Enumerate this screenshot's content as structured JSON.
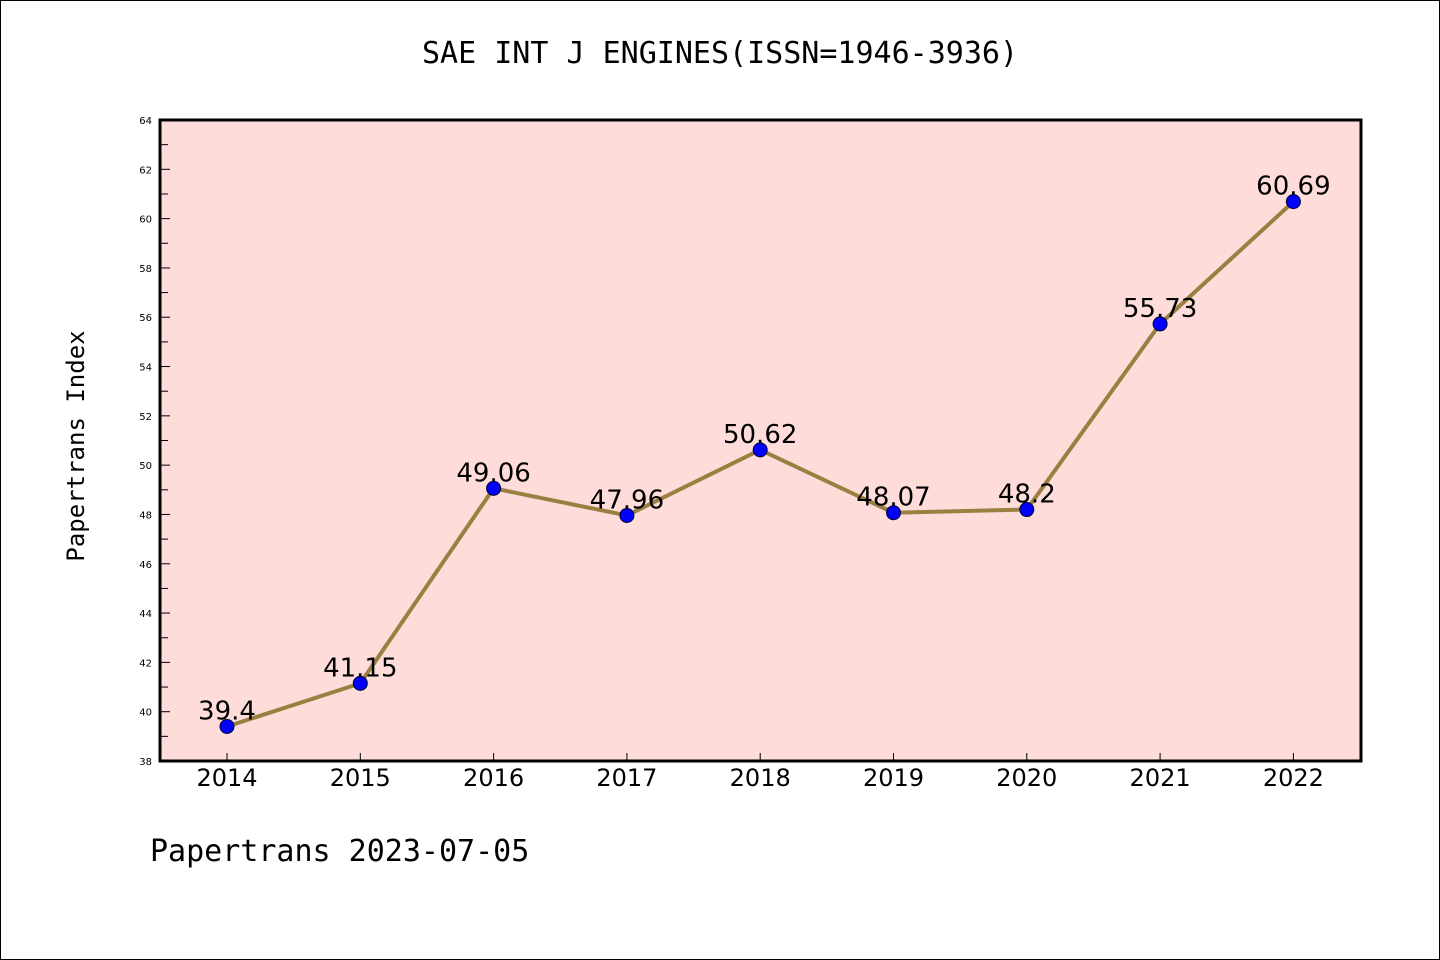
{
  "title": "SAE INT J ENGINES(ISSN=1946-3936)",
  "footer": "Papertrans 2023-07-05",
  "colors": {
    "plot_background": "#fddcda",
    "line": "#9a8040",
    "marker": "#0000ff",
    "axis": "#000000"
  },
  "chart_data": {
    "type": "line",
    "title": "SAE INT J ENGINES(ISSN=1946-3936)",
    "xlabel": "",
    "ylabel": "Papertrans Index",
    "categories": [
      "2014",
      "2015",
      "2016",
      "2017",
      "2018",
      "2019",
      "2020",
      "2021",
      "2022"
    ],
    "series": [
      {
        "values": [
          39.4,
          41.15,
          49.06,
          47.96,
          50.62,
          48.07,
          48.2,
          55.73,
          60.69
        ],
        "labels": [
          "39.4",
          "41.15",
          "49.06",
          "47.96",
          "50.62",
          "48.07",
          "48.2",
          "55.73",
          "60.69"
        ]
      }
    ],
    "ylim": [
      38,
      64
    ],
    "y_major_ticks": [
      "38",
      "40",
      "42",
      "44",
      "46",
      "48",
      "50",
      "52",
      "54",
      "56",
      "58",
      "60",
      "62",
      "64"
    ],
    "y_minor_step": 1,
    "grid": false,
    "legend": "none"
  }
}
